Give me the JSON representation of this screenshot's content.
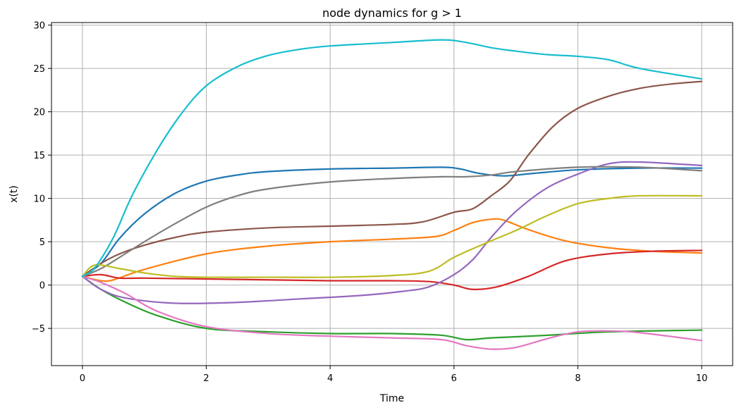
{
  "chart_data": {
    "type": "line",
    "title": "node dynamics for g > 1",
    "xlabel": "Time",
    "ylabel": "x(t)",
    "xlim": [
      -0.5,
      10.5
    ],
    "ylim": [
      -9.3,
      30.3
    ],
    "xticks": [
      0,
      2,
      4,
      6,
      8,
      10
    ],
    "yticks": [
      -5,
      0,
      5,
      10,
      15,
      20,
      25,
      30
    ],
    "ytick_labels": [
      "−5",
      "0",
      "5",
      "10",
      "15",
      "20",
      "25",
      "30"
    ],
    "grid": true,
    "series": [
      {
        "color": "#1f77b4",
        "points": [
          [
            0,
            1
          ],
          [
            0.3,
            2.5
          ],
          [
            0.6,
            5.4
          ],
          [
            1,
            8.2
          ],
          [
            1.5,
            10.6
          ],
          [
            2,
            12
          ],
          [
            2.5,
            12.7
          ],
          [
            3,
            13.1
          ],
          [
            4,
            13.4
          ],
          [
            5,
            13.5
          ],
          [
            5.8,
            13.6
          ],
          [
            6.1,
            13.4
          ],
          [
            6.4,
            12.9
          ],
          [
            6.8,
            12.6
          ],
          [
            7.3,
            12.9
          ],
          [
            8,
            13.3
          ],
          [
            9,
            13.5
          ],
          [
            10,
            13.5
          ]
        ]
      },
      {
        "color": "#ff7f0e",
        "points": [
          [
            0,
            1
          ],
          [
            0.3,
            0.5
          ],
          [
            0.5,
            0.6
          ],
          [
            1,
            1.8
          ],
          [
            2,
            3.6
          ],
          [
            3,
            4.5
          ],
          [
            4,
            5
          ],
          [
            5,
            5.3
          ],
          [
            5.7,
            5.6
          ],
          [
            6,
            6.3
          ],
          [
            6.3,
            7.2
          ],
          [
            6.6,
            7.6
          ],
          [
            6.8,
            7.5
          ],
          [
            7.2,
            6.4
          ],
          [
            7.8,
            5.1
          ],
          [
            8.5,
            4.3
          ],
          [
            9.2,
            3.9
          ],
          [
            10,
            3.7
          ]
        ]
      },
      {
        "color": "#2ca02c",
        "points": [
          [
            0,
            1
          ],
          [
            0.3,
            -0.5
          ],
          [
            0.7,
            -2
          ],
          [
            1.2,
            -3.5
          ],
          [
            2,
            -5
          ],
          [
            3,
            -5.4
          ],
          [
            4,
            -5.6
          ],
          [
            5,
            -5.6
          ],
          [
            5.8,
            -5.8
          ],
          [
            6.2,
            -6.3
          ],
          [
            6.6,
            -6.1
          ],
          [
            7.5,
            -5.8
          ],
          [
            8.5,
            -5.4
          ],
          [
            10,
            -5.2
          ]
        ]
      },
      {
        "color": "#d62728",
        "points": [
          [
            0,
            1
          ],
          [
            0.3,
            1.2
          ],
          [
            0.6,
            0.8
          ],
          [
            1,
            0.8
          ],
          [
            2,
            0.7
          ],
          [
            3,
            0.6
          ],
          [
            4,
            0.5
          ],
          [
            5,
            0.5
          ],
          [
            5.6,
            0.4
          ],
          [
            6,
            0
          ],
          [
            6.3,
            -0.5
          ],
          [
            6.7,
            -0.2
          ],
          [
            7.2,
            1
          ],
          [
            7.8,
            2.8
          ],
          [
            8.5,
            3.6
          ],
          [
            9.2,
            3.9
          ],
          [
            10,
            4
          ]
        ]
      },
      {
        "color": "#9467bd",
        "points": [
          [
            0,
            1
          ],
          [
            0.3,
            -0.5
          ],
          [
            0.7,
            -1.5
          ],
          [
            1.5,
            -2.1
          ],
          [
            2.5,
            -2
          ],
          [
            3.5,
            -1.6
          ],
          [
            4.5,
            -1.2
          ],
          [
            5.2,
            -0.7
          ],
          [
            5.6,
            -0.2
          ],
          [
            6,
            1.2
          ],
          [
            6.3,
            2.9
          ],
          [
            6.6,
            5.5
          ],
          [
            7,
            8.5
          ],
          [
            7.5,
            11.2
          ],
          [
            8,
            12.8
          ],
          [
            8.5,
            14
          ],
          [
            9,
            14.2
          ],
          [
            10,
            13.8
          ]
        ]
      },
      {
        "color": "#8c564b",
        "points": [
          [
            0,
            1
          ],
          [
            0.3,
            2.5
          ],
          [
            0.6,
            3.6
          ],
          [
            1,
            4.6
          ],
          [
            1.5,
            5.5
          ],
          [
            2,
            6.1
          ],
          [
            3,
            6.6
          ],
          [
            4,
            6.8
          ],
          [
            5,
            7
          ],
          [
            5.5,
            7.3
          ],
          [
            6,
            8.4
          ],
          [
            6.3,
            8.8
          ],
          [
            6.6,
            10.3
          ],
          [
            6.9,
            12
          ],
          [
            7.2,
            15
          ],
          [
            7.6,
            18.3
          ],
          [
            8,
            20.4
          ],
          [
            8.5,
            21.8
          ],
          [
            9,
            22.7
          ],
          [
            9.5,
            23.2
          ],
          [
            10,
            23.5
          ]
        ]
      },
      {
        "color": "#e377c2",
        "points": [
          [
            0,
            1
          ],
          [
            0.3,
            0.3
          ],
          [
            0.7,
            -1
          ],
          [
            1.2,
            -3
          ],
          [
            2,
            -4.8
          ],
          [
            3,
            -5.6
          ],
          [
            4,
            -5.9
          ],
          [
            5,
            -6.1
          ],
          [
            5.8,
            -6.3
          ],
          [
            6.2,
            -7
          ],
          [
            6.6,
            -7.4
          ],
          [
            7,
            -7.2
          ],
          [
            7.5,
            -6.2
          ],
          [
            8,
            -5.4
          ],
          [
            8.5,
            -5.3
          ],
          [
            9,
            -5.5
          ],
          [
            10,
            -6.4
          ]
        ]
      },
      {
        "color": "#7f7f7f",
        "points": [
          [
            0,
            1
          ],
          [
            0.3,
            1.9
          ],
          [
            0.6,
            3.2
          ],
          [
            1,
            5
          ],
          [
            1.5,
            7.1
          ],
          [
            2,
            9
          ],
          [
            2.5,
            10.3
          ],
          [
            3,
            11.1
          ],
          [
            4,
            11.9
          ],
          [
            5,
            12.3
          ],
          [
            5.8,
            12.5
          ],
          [
            6.2,
            12.5
          ],
          [
            6.6,
            12.7
          ],
          [
            7,
            13.1
          ],
          [
            8,
            13.6
          ],
          [
            9,
            13.6
          ],
          [
            10,
            13.2
          ]
        ]
      },
      {
        "color": "#bcbd22",
        "points": [
          [
            0,
            1
          ],
          [
            0.2,
            2.3
          ],
          [
            0.6,
            1.9
          ],
          [
            1,
            1.4
          ],
          [
            1.5,
            1
          ],
          [
            2,
            0.9
          ],
          [
            3,
            0.9
          ],
          [
            4,
            0.9
          ],
          [
            5,
            1.1
          ],
          [
            5.6,
            1.6
          ],
          [
            6,
            3.2
          ],
          [
            6.5,
            4.8
          ],
          [
            7,
            6.3
          ],
          [
            7.5,
            8
          ],
          [
            8,
            9.4
          ],
          [
            8.5,
            10
          ],
          [
            9,
            10.3
          ],
          [
            10,
            10.3
          ]
        ]
      },
      {
        "color": "#17becf",
        "points": [
          [
            0,
            1
          ],
          [
            0.2,
            2
          ],
          [
            0.5,
            5.5
          ],
          [
            0.8,
            10.3
          ],
          [
            1.2,
            15.5
          ],
          [
            1.6,
            19.8
          ],
          [
            2,
            23
          ],
          [
            2.5,
            25.2
          ],
          [
            3,
            26.5
          ],
          [
            3.5,
            27.2
          ],
          [
            4,
            27.6
          ],
          [
            5,
            28
          ],
          [
            5.8,
            28.3
          ],
          [
            6.2,
            28
          ],
          [
            6.6,
            27.4
          ],
          [
            7,
            27
          ],
          [
            7.5,
            26.6
          ],
          [
            8,
            26.4
          ],
          [
            8.5,
            26
          ],
          [
            9,
            25
          ],
          [
            10,
            23.8
          ]
        ]
      }
    ]
  }
}
